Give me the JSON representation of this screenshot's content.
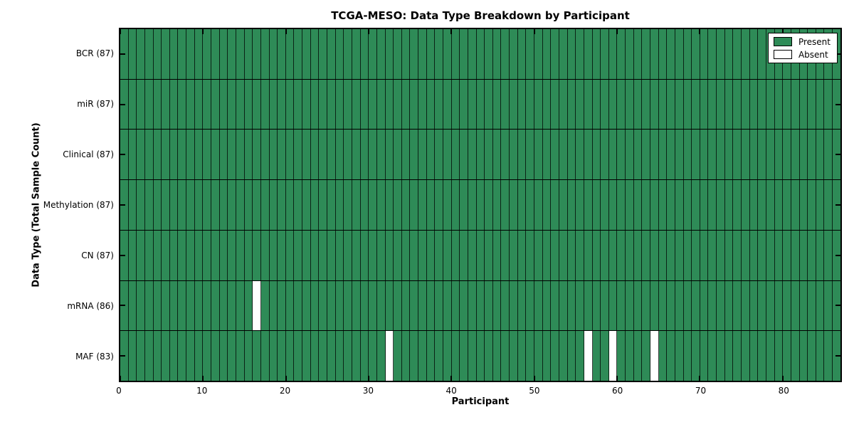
{
  "chart_data": {
    "type": "heatmap",
    "title": "TCGA-MESO: Data Type Breakdown by Participant",
    "xlabel": "Participant",
    "ylabel": "Data Type (Total Sample Count)",
    "n_participants": 87,
    "xlim": [
      0,
      87
    ],
    "x_ticks": [
      0,
      10,
      20,
      30,
      40,
      50,
      60,
      70,
      80
    ],
    "rows": [
      {
        "label": "BCR",
        "count": 87,
        "absent_participants": []
      },
      {
        "label": "miR",
        "count": 87,
        "absent_participants": []
      },
      {
        "label": "Clinical",
        "count": 87,
        "absent_participants": []
      },
      {
        "label": "Methylation",
        "count": 87,
        "absent_participants": []
      },
      {
        "label": "CN",
        "count": 87,
        "absent_participants": []
      },
      {
        "label": "mRNA",
        "count": 86,
        "absent_participants": [
          16
        ]
      },
      {
        "label": "MAF",
        "count": 83,
        "absent_participants": [
          32,
          56,
          59,
          64
        ]
      }
    ],
    "legend": [
      {
        "label": "Present",
        "color": "#2e8b57"
      },
      {
        "label": "Absent",
        "color": "#ffffff"
      }
    ],
    "colors": {
      "present": "#2e8b57",
      "absent": "#ffffff",
      "frame": "#000000"
    },
    "legend_position": "upper right",
    "grid": true
  }
}
